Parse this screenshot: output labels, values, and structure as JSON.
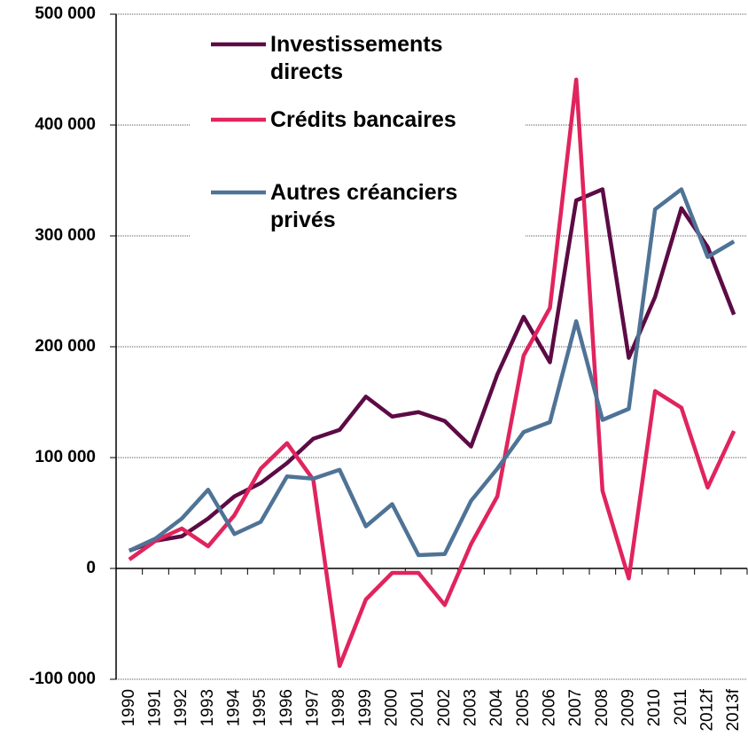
{
  "chart_data": {
    "type": "line",
    "categories": [
      "1990",
      "1991",
      "1992",
      "1993",
      "1994",
      "1995",
      "1996",
      "1997",
      "1998",
      "1999",
      "2000",
      "2001",
      "2002",
      "2003",
      "2004",
      "2005",
      "2006",
      "2007",
      "2008",
      "2009",
      "2010",
      "2011",
      "2012f",
      "2013f"
    ],
    "series": [
      {
        "name": "Investissements directs",
        "color": "#5c0b45",
        "values": [
          16000,
          25000,
          29000,
          45000,
          65000,
          77000,
          95000,
          117000,
          125000,
          155000,
          137000,
          141000,
          133000,
          110000,
          175000,
          227000,
          186000,
          332000,
          342000,
          190000,
          245000,
          325000,
          290000,
          229000
        ]
      },
      {
        "name": "Crédits bancaires",
        "color": "#e0245e",
        "values": [
          8000,
          25000,
          36000,
          20000,
          48000,
          90000,
          113000,
          80000,
          -88000,
          -28000,
          -4000,
          -4000,
          -33000,
          22000,
          65000,
          192000,
          235000,
          441000,
          70000,
          -9000,
          160000,
          145000,
          73000,
          124000
        ]
      },
      {
        "name": "Autres créanciers privés",
        "color": "#4f7396",
        "values": [
          16000,
          27000,
          45000,
          71000,
          31000,
          42000,
          83000,
          81000,
          89000,
          38000,
          58000,
          12000,
          13000,
          61000,
          90000,
          123000,
          132000,
          223000,
          134000,
          144000,
          324000,
          342000,
          281000,
          295000
        ]
      }
    ],
    "ylim": [
      -100000,
      500000
    ],
    "yticks": [
      {
        "value": -100000,
        "label": "-100 000"
      },
      0,
      {
        "value": 100000,
        "label": "100 000"
      },
      {
        "value": 200000,
        "label": "200 000"
      },
      {
        "value": 300000,
        "label": "300 000"
      },
      {
        "value": 400000,
        "label": "400 000"
      },
      {
        "value": 500000,
        "label": "500 000"
      }
    ],
    "grid": true
  }
}
